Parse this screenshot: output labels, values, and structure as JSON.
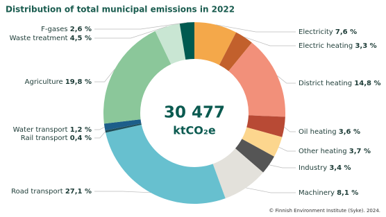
{
  "chart_data": {
    "type": "donut",
    "title": "Distribution of total municipal emissions in 2022",
    "center_value": "30 477",
    "center_unit": "ktCO₂e",
    "source": "© Finnish Environment Institute (Syke). 2024.",
    "categories": [
      "Electricity",
      "Electric heating",
      "District heating",
      "Oil heating",
      "Other heating",
      "Industry",
      "Machinery",
      "Road transport",
      "Rail transport",
      "Water transport",
      "Agriculture",
      "Waste treatment",
      "F-gases"
    ],
    "values": [
      7.6,
      3.3,
      14.8,
      3.6,
      3.7,
      3.4,
      8.1,
      27.1,
      0.4,
      1.2,
      19.8,
      4.5,
      2.6
    ],
    "value_labels": [
      "7,6 %",
      "3,3 %",
      "14,8 %",
      "3,6 %",
      "3,7 %",
      "3,4 %",
      "8,1 %",
      "27,1 %",
      "0,4 %",
      "1,2 %",
      "19,8 %",
      "4,5 %",
      "2,6 %"
    ],
    "colors": [
      "#f4a84a",
      "#c2602c",
      "#f2907a",
      "#b84a35",
      "#fcd68e",
      "#555555",
      "#e3e1db",
      "#67c0cf",
      "#1f4e5a",
      "#1d5e8a",
      "#8bc79a",
      "#c9e6d3",
      "#005a50"
    ]
  }
}
